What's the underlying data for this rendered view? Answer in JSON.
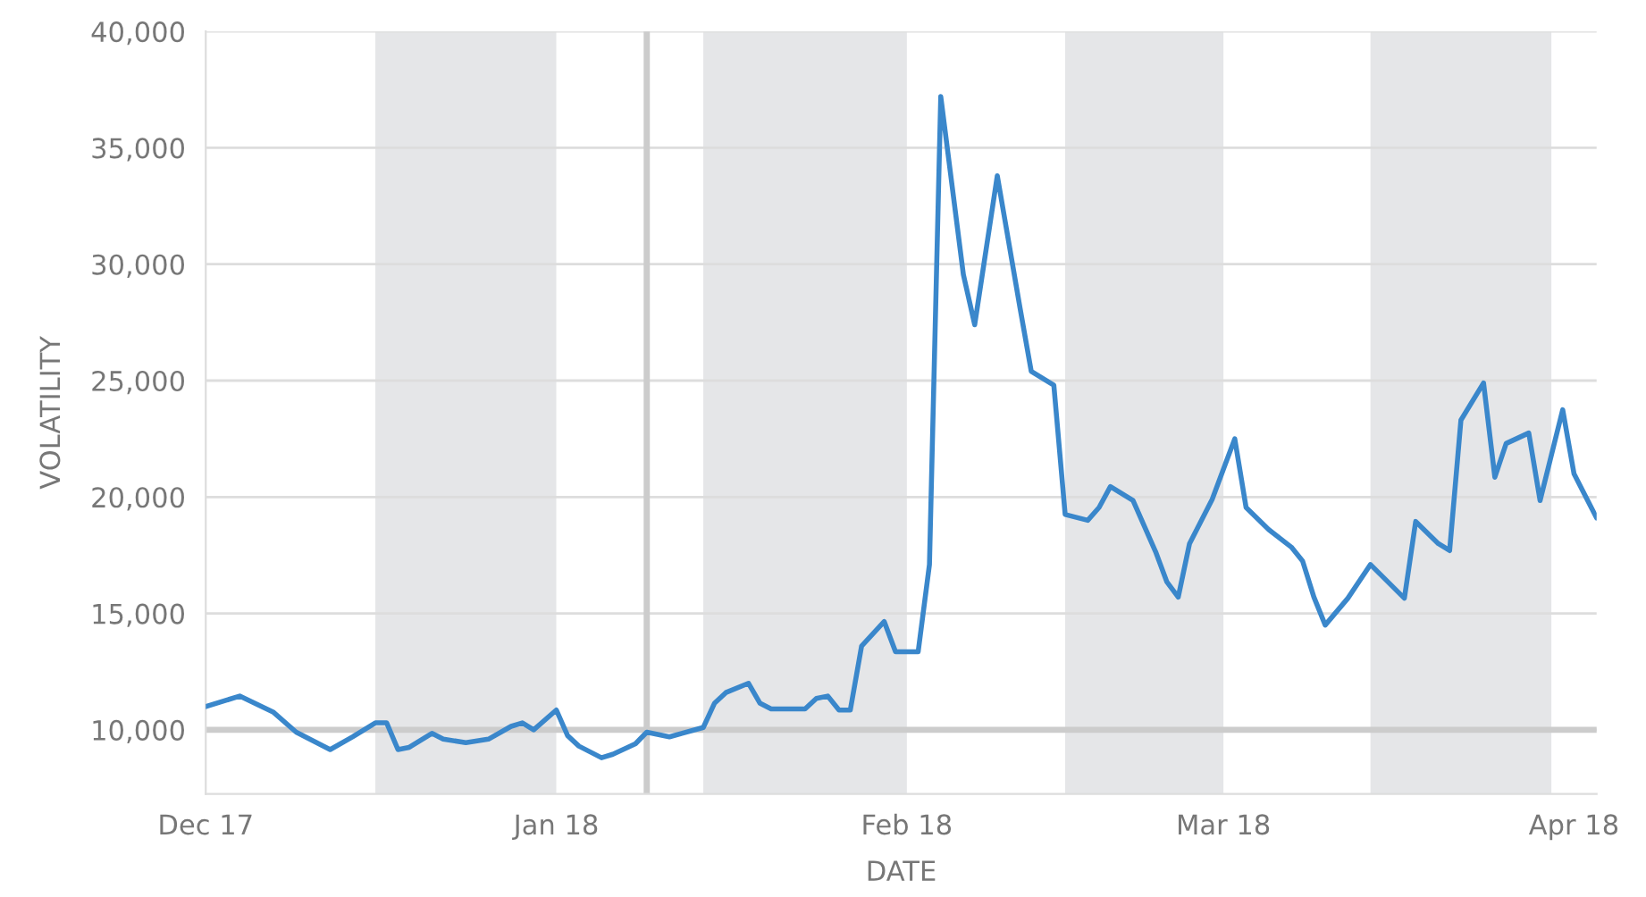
{
  "chart_data": {
    "type": "line",
    "xlabel": "DATE",
    "ylabel": "VOLATILITY",
    "x": [
      "2017-12-01",
      "2017-12-04",
      "2017-12-07",
      "2017-12-09",
      "2017-12-12",
      "2017-12-14",
      "2017-12-16",
      "2017-12-17",
      "2017-12-18",
      "2017-12-19",
      "2017-12-21",
      "2017-12-22",
      "2017-12-24",
      "2017-12-26",
      "2017-12-28",
      "2017-12-29",
      "2017-12-30",
      "2018-01-01",
      "2018-01-02",
      "2018-01-03",
      "2018-01-05",
      "2018-01-06",
      "2018-01-08",
      "2018-01-09",
      "2018-01-11",
      "2018-01-14",
      "2018-01-15",
      "2018-01-16",
      "2018-01-18",
      "2018-01-19",
      "2018-01-20",
      "2018-01-23",
      "2018-01-24",
      "2018-01-25",
      "2018-01-26",
      "2018-01-27",
      "2018-01-28",
      "2018-01-30",
      "2018-01-31",
      "2018-02-02",
      "2018-02-03",
      "2018-02-04",
      "2018-02-06",
      "2018-02-07",
      "2018-02-09",
      "2018-02-11",
      "2018-02-12",
      "2018-02-14",
      "2018-02-15",
      "2018-02-17",
      "2018-02-18",
      "2018-02-19",
      "2018-02-21",
      "2018-02-23",
      "2018-02-24",
      "2018-02-25",
      "2018-02-26",
      "2018-02-28",
      "2018-03-02",
      "2018-03-03",
      "2018-03-05",
      "2018-03-07",
      "2018-03-08",
      "2018-03-09",
      "2018-03-10",
      "2018-03-12",
      "2018-03-14",
      "2018-03-17",
      "2018-03-18",
      "2018-03-20",
      "2018-03-21",
      "2018-03-22",
      "2018-03-24",
      "2018-03-25",
      "2018-03-26",
      "2018-03-28",
      "2018-03-29",
      "2018-03-31",
      "2018-04-01",
      "2018-04-03"
    ],
    "series": [
      {
        "color": "#3a87cb",
        "values": [
          11000,
          11450,
          10750,
          9900,
          9150,
          9700,
          10300,
          10300,
          9150,
          9250,
          9850,
          9600,
          9450,
          9600,
          10150,
          10300,
          10000,
          10850,
          9750,
          9300,
          8800,
          8950,
          9400,
          9900,
          9700,
          10100,
          11150,
          11600,
          12000,
          11150,
          10900,
          10900,
          11350,
          11450,
          10850,
          10850,
          13600,
          14650,
          13350,
          13350,
          17100,
          37200,
          29550,
          27400,
          33800,
          28150,
          25400,
          24800,
          19250,
          19000,
          19550,
          20450,
          19850,
          17650,
          16350,
          15700,
          18000,
          19900,
          22500,
          19550,
          18600,
          17850,
          17250,
          15700,
          14500,
          15650,
          17100,
          15650,
          18950,
          18000,
          17700,
          23300,
          24900,
          20850,
          22300,
          22750,
          19850,
          23750,
          21000,
          19100
        ]
      }
    ],
    "xlim": [
      "2017-12-01",
      "2018-04-03"
    ],
    "xticks": [
      {
        "value": "2017-12-01",
        "label": "Dec 17"
      },
      {
        "value": "2018-01-01",
        "label": "Jan 18"
      },
      {
        "value": "2018-02-01",
        "label": "Feb 18"
      },
      {
        "value": "2018-03-01",
        "label": "Mar 18"
      },
      {
        "value": "2018-04-01",
        "label": "Apr 18"
      }
    ],
    "ylim": [
      7250,
      40000
    ],
    "yticks": [
      {
        "value": 10000,
        "label": "10,000"
      },
      {
        "value": 15000,
        "label": "15,000"
      },
      {
        "value": 20000,
        "label": "20,000"
      },
      {
        "value": 25000,
        "label": "25,000"
      },
      {
        "value": 30000,
        "label": "30,000"
      },
      {
        "value": 35000,
        "label": "35,000"
      },
      {
        "value": 40000,
        "label": "40,000"
      }
    ],
    "grid": "y",
    "legend": false,
    "marker": "none",
    "line_style": "solid",
    "ref_lines": [
      {
        "axis": "y",
        "value": 10000,
        "color": "#cccccc"
      },
      {
        "axis": "x",
        "value": "2018-01-09",
        "color": "#cccccc"
      }
    ],
    "bands": [
      {
        "axis": "x",
        "from": "2017-12-16",
        "to": "2018-01-01",
        "color": "#e5e6e8"
      },
      {
        "axis": "x",
        "from": "2018-01-14",
        "to": "2018-02-01",
        "color": "#e5e6e8"
      },
      {
        "axis": "x",
        "from": "2018-02-15",
        "to": "2018-03-01",
        "color": "#e5e6e8"
      },
      {
        "axis": "x",
        "from": "2018-03-14",
        "to": "2018-03-30",
        "color": "#e5e6e8"
      }
    ]
  }
}
